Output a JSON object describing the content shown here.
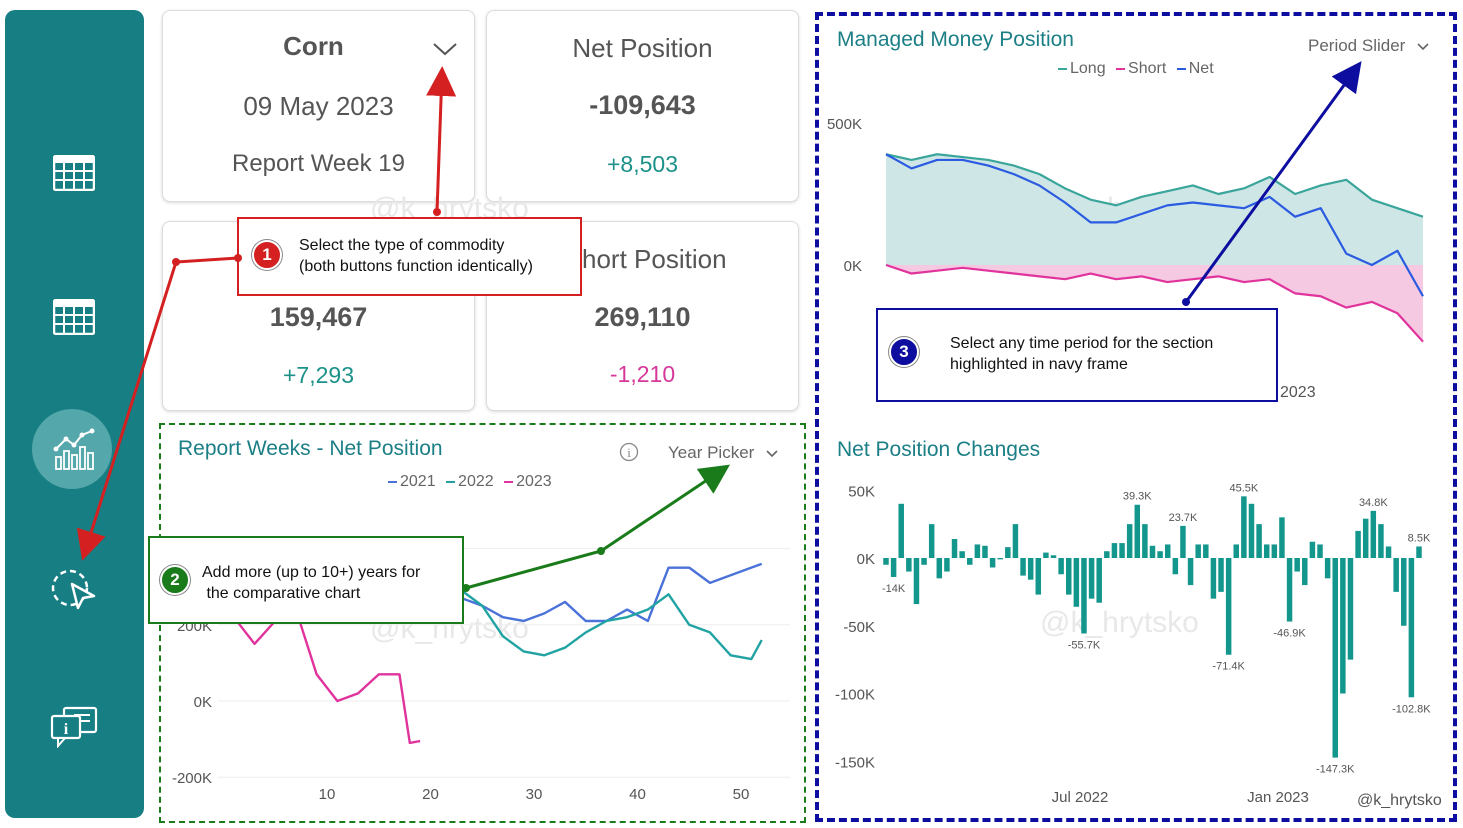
{
  "sidebar": {
    "items": [
      {
        "icon": "table-icon"
      },
      {
        "icon": "table-icon"
      },
      {
        "icon": "bar-chart-icon",
        "active": true
      },
      {
        "icon": "cursor-click-icon"
      },
      {
        "icon": "info-chat-icon"
      }
    ]
  },
  "commodity_card": {
    "name": "Corn",
    "date": "09 May 2023",
    "week": "Report Week 19"
  },
  "net_card": {
    "title": "Net Position",
    "value": "-109,643",
    "change": "+8,503"
  },
  "long_card": {
    "value": "159,467",
    "change": "+7,293"
  },
  "short_card": {
    "title": "Short Position",
    "title_visible": "hort Position",
    "value": "269,110",
    "change": "-1,210"
  },
  "report_weeks": {
    "title": "Report Weeks  -  Net Position",
    "info_icon": "info-icon",
    "picker_label": "Year Picker",
    "legend": [
      {
        "label": "2021",
        "color": "#4a72d9"
      },
      {
        "label": "2022",
        "color": "#22a3a3"
      },
      {
        "label": "2023",
        "color": "#e0339c"
      }
    ],
    "y_ticks": [
      "200K",
      "0K",
      "-200K"
    ],
    "x_ticks": [
      "10",
      "20",
      "30",
      "40",
      "50"
    ]
  },
  "managed_money": {
    "title": "Managed Money Position",
    "picker_label": "Period Slider",
    "legend": [
      {
        "label": "Long",
        "color": "#3aa59a"
      },
      {
        "label": "Short",
        "color": "#e0339c"
      },
      {
        "label": "Net",
        "color": "#2a5be0"
      }
    ],
    "y_ticks": [
      "500K",
      "0K"
    ],
    "x_tick_visible": "2023"
  },
  "net_changes": {
    "title": "Net Position Changes",
    "y_ticks": [
      "50K",
      "0K",
      "-50K",
      "-100K",
      "-150K"
    ],
    "x_ticks": [
      "Jul 2022",
      "Jan 2023"
    ],
    "bar_labels": [
      "39.3K",
      "23.7K",
      "45.5K",
      "34.8K",
      "8.5K",
      "-14K",
      "-55.7K",
      "-71.4K",
      "-46.9K",
      "-147.3K",
      "-102.8K"
    ],
    "credit": "@k_hrytsko"
  },
  "callouts": {
    "c1": {
      "number": "1",
      "text1": "Select the type of commodity",
      "text2": "(both buttons function identically)",
      "color": "#d42020"
    },
    "c2": {
      "number": "2",
      "text1": "Add more (up to 10+) years for",
      "text2": " the comparative chart",
      "color": "#1a7b1a"
    },
    "c3": {
      "number": "3",
      "text1": "Select any time period for the section",
      "text2": "highlighted in navy frame",
      "color": "#0d0da0"
    }
  },
  "watermark": "@k_hrytsko",
  "chart_data": [
    {
      "type": "line",
      "title": "Report Weeks  -  Net Position",
      "xlabel": "",
      "ylabel": "",
      "ylim": [
        -200000,
        400000
      ],
      "series": [
        {
          "name": "2021",
          "x": [
            23,
            25,
            27,
            29,
            31,
            33,
            35,
            37,
            39,
            41,
            43,
            45,
            47,
            49,
            51,
            52
          ],
          "values": [
            270000,
            250000,
            220000,
            210000,
            230000,
            260000,
            210000,
            210000,
            240000,
            210000,
            350000,
            350000,
            310000,
            330000,
            350000,
            360000
          ]
        },
        {
          "name": "2022",
          "x": [
            23,
            25,
            27,
            29,
            31,
            33,
            35,
            37,
            39,
            41,
            43,
            45,
            47,
            49,
            51,
            52
          ],
          "values": [
            290000,
            250000,
            170000,
            130000,
            120000,
            140000,
            180000,
            210000,
            220000,
            240000,
            280000,
            200000,
            180000,
            120000,
            110000,
            160000
          ]
        },
        {
          "name": "2023",
          "x": [
            1,
            3,
            5,
            7,
            9,
            11,
            13,
            15,
            17,
            18,
            19
          ],
          "values": [
            220000,
            150000,
            210000,
            240000,
            70000,
            0,
            20000,
            70000,
            70000,
            -110000,
            -105000
          ]
        }
      ]
    },
    {
      "type": "area",
      "title": "Managed Money Position",
      "ylim": [
        -300000,
        550000
      ],
      "series": [
        {
          "name": "Long",
          "values": [
            390000,
            370000,
            390000,
            380000,
            370000,
            350000,
            320000,
            270000,
            230000,
            210000,
            240000,
            260000,
            280000,
            250000,
            270000,
            310000,
            250000,
            280000,
            300000,
            230000,
            200000,
            170000
          ]
        },
        {
          "name": "Short",
          "values": [
            0,
            -30000,
            -20000,
            -10000,
            -20000,
            -30000,
            -40000,
            -50000,
            -30000,
            -50000,
            -40000,
            -60000,
            -50000,
            -40000,
            -60000,
            -50000,
            -100000,
            -110000,
            -150000,
            -130000,
            -170000,
            -270000
          ]
        },
        {
          "name": "Net",
          "values": [
            390000,
            340000,
            370000,
            370000,
            350000,
            320000,
            280000,
            220000,
            150000,
            150000,
            180000,
            210000,
            220000,
            210000,
            200000,
            240000,
            170000,
            200000,
            40000,
            0,
            50000,
            -110000
          ]
        }
      ]
    },
    {
      "type": "bar",
      "title": "Net Position Changes",
      "ylim": [
        -150000,
        60000
      ],
      "values": [
        -5000,
        -14000,
        40000,
        -10000,
        -34000,
        -5000,
        25000,
        -15000,
        -10000,
        14000,
        5000,
        -5000,
        10000,
        9000,
        -7000,
        -1000,
        8000,
        25000,
        -13000,
        -16000,
        -27000,
        4000,
        2000,
        -12000,
        -27000,
        -36000,
        -55700,
        -30000,
        -33000,
        5000,
        11000,
        11000,
        25000,
        39300,
        25000,
        9000,
        5000,
        10000,
        -12000,
        23700,
        -20000,
        10000,
        10000,
        -30000,
        -25000,
        -71400,
        10000,
        45500,
        40000,
        25000,
        10000,
        10000,
        30000,
        -46900,
        -10000,
        -20000,
        12000,
        10000,
        -15000,
        -147300,
        -100000,
        -75000,
        20000,
        29000,
        34800,
        25000,
        8500,
        -25000,
        -50000,
        -102800,
        8500
      ]
    }
  ]
}
